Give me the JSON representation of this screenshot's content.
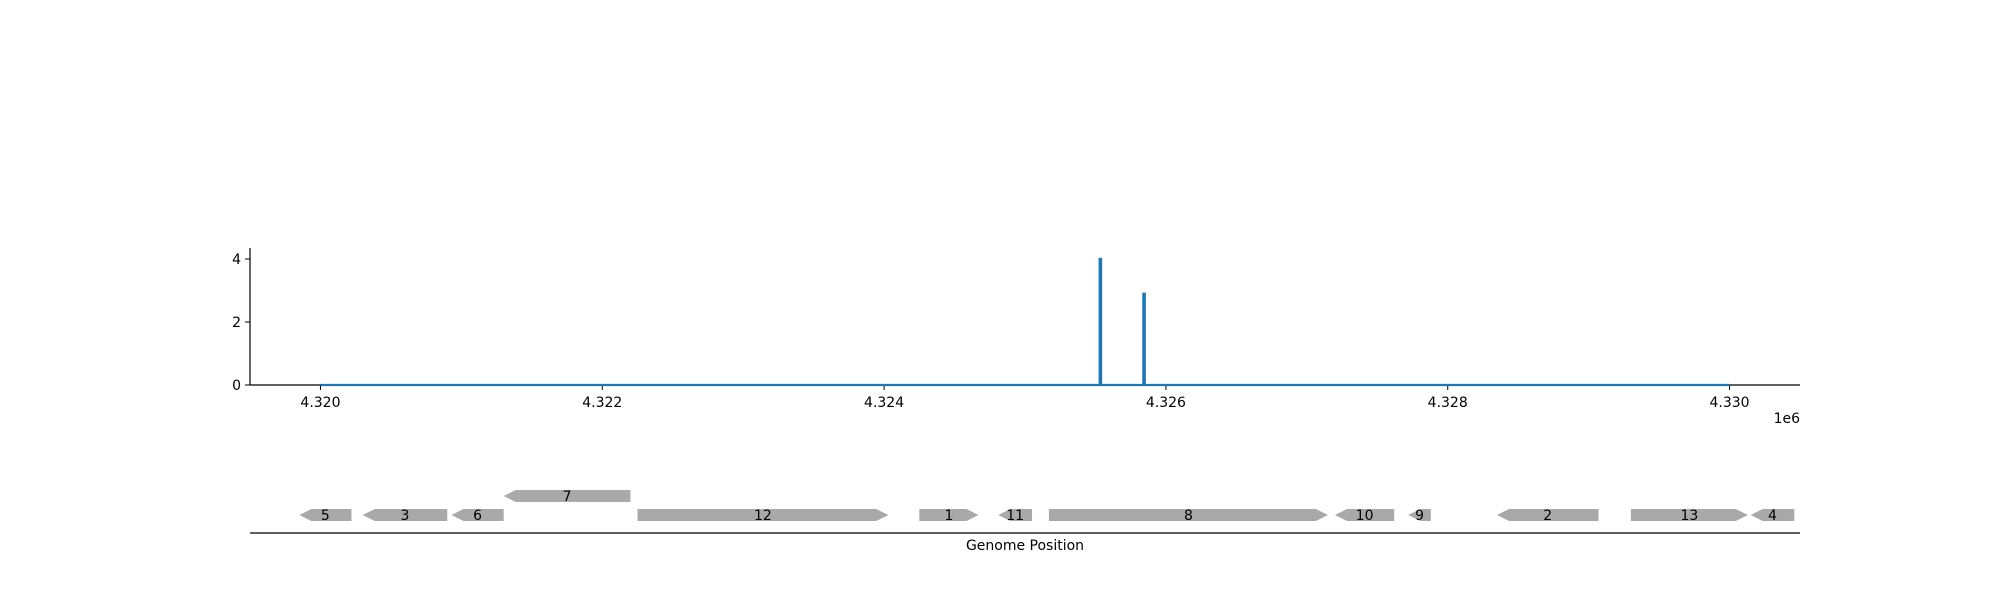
{
  "chart_data": [
    {
      "type": "line",
      "title": "",
      "xlabel": "",
      "ylabel": "",
      "x_offset_label": "1e6",
      "xlim": [
        4319500,
        4330500
      ],
      "ylim": [
        0,
        4.35
      ],
      "x_ticks": [
        4320000,
        4322000,
        4324000,
        4326000,
        4328000,
        4330000
      ],
      "x_tick_labels": [
        "4.320",
        "4.322",
        "4.324",
        "4.326",
        "4.328",
        "4.330"
      ],
      "y_ticks": [
        0,
        2,
        4
      ],
      "y_tick_labels": [
        "0",
        "2",
        "4"
      ],
      "grid": false,
      "color": "#1f77b4",
      "series": [
        {
          "x": [
            4320000,
            4325530,
            4325530,
            4325540,
            4325540,
            4325840,
            4325840,
            4325850,
            4325850,
            4330000
          ],
          "y": [
            0,
            0,
            4,
            4,
            0,
            0,
            2.9,
            2.9,
            0,
            0
          ]
        }
      ]
    },
    {
      "type": "gene_track",
      "xlabel": "Genome Position",
      "xlim": [
        4319500,
        4330500
      ],
      "color": "#a9a9a9",
      "genes": [
        {
          "label": "5",
          "start": 4319850,
          "end": 4320220,
          "strand": "-",
          "row": 0
        },
        {
          "label": "3",
          "start": 4320300,
          "end": 4320900,
          "strand": "-",
          "row": 0
        },
        {
          "label": "6",
          "start": 4320930,
          "end": 4321300,
          "strand": "-",
          "row": 0
        },
        {
          "label": "7",
          "start": 4321300,
          "end": 4322200,
          "strand": "-",
          "row": 1
        },
        {
          "label": "12",
          "start": 4322250,
          "end": 4324030,
          "strand": "+",
          "row": 0
        },
        {
          "label": "1",
          "start": 4324250,
          "end": 4324670,
          "strand": "+",
          "row": 0
        },
        {
          "label": "11",
          "start": 4324810,
          "end": 4325050,
          "strand": "-",
          "row": 0
        },
        {
          "label": "8",
          "start": 4325170,
          "end": 4327150,
          "strand": "+",
          "row": 0
        },
        {
          "label": "10",
          "start": 4327200,
          "end": 4327620,
          "strand": "-",
          "row": 0
        },
        {
          "label": "9",
          "start": 4327720,
          "end": 4327880,
          "strand": "-",
          "row": 0
        },
        {
          "label": "2",
          "start": 4328350,
          "end": 4329070,
          "strand": "-",
          "row": 0
        },
        {
          "label": "13",
          "start": 4329300,
          "end": 4330130,
          "strand": "+",
          "row": 0
        },
        {
          "label": "4",
          "start": 4330150,
          "end": 4330460,
          "strand": "-",
          "row": 0
        }
      ]
    }
  ]
}
